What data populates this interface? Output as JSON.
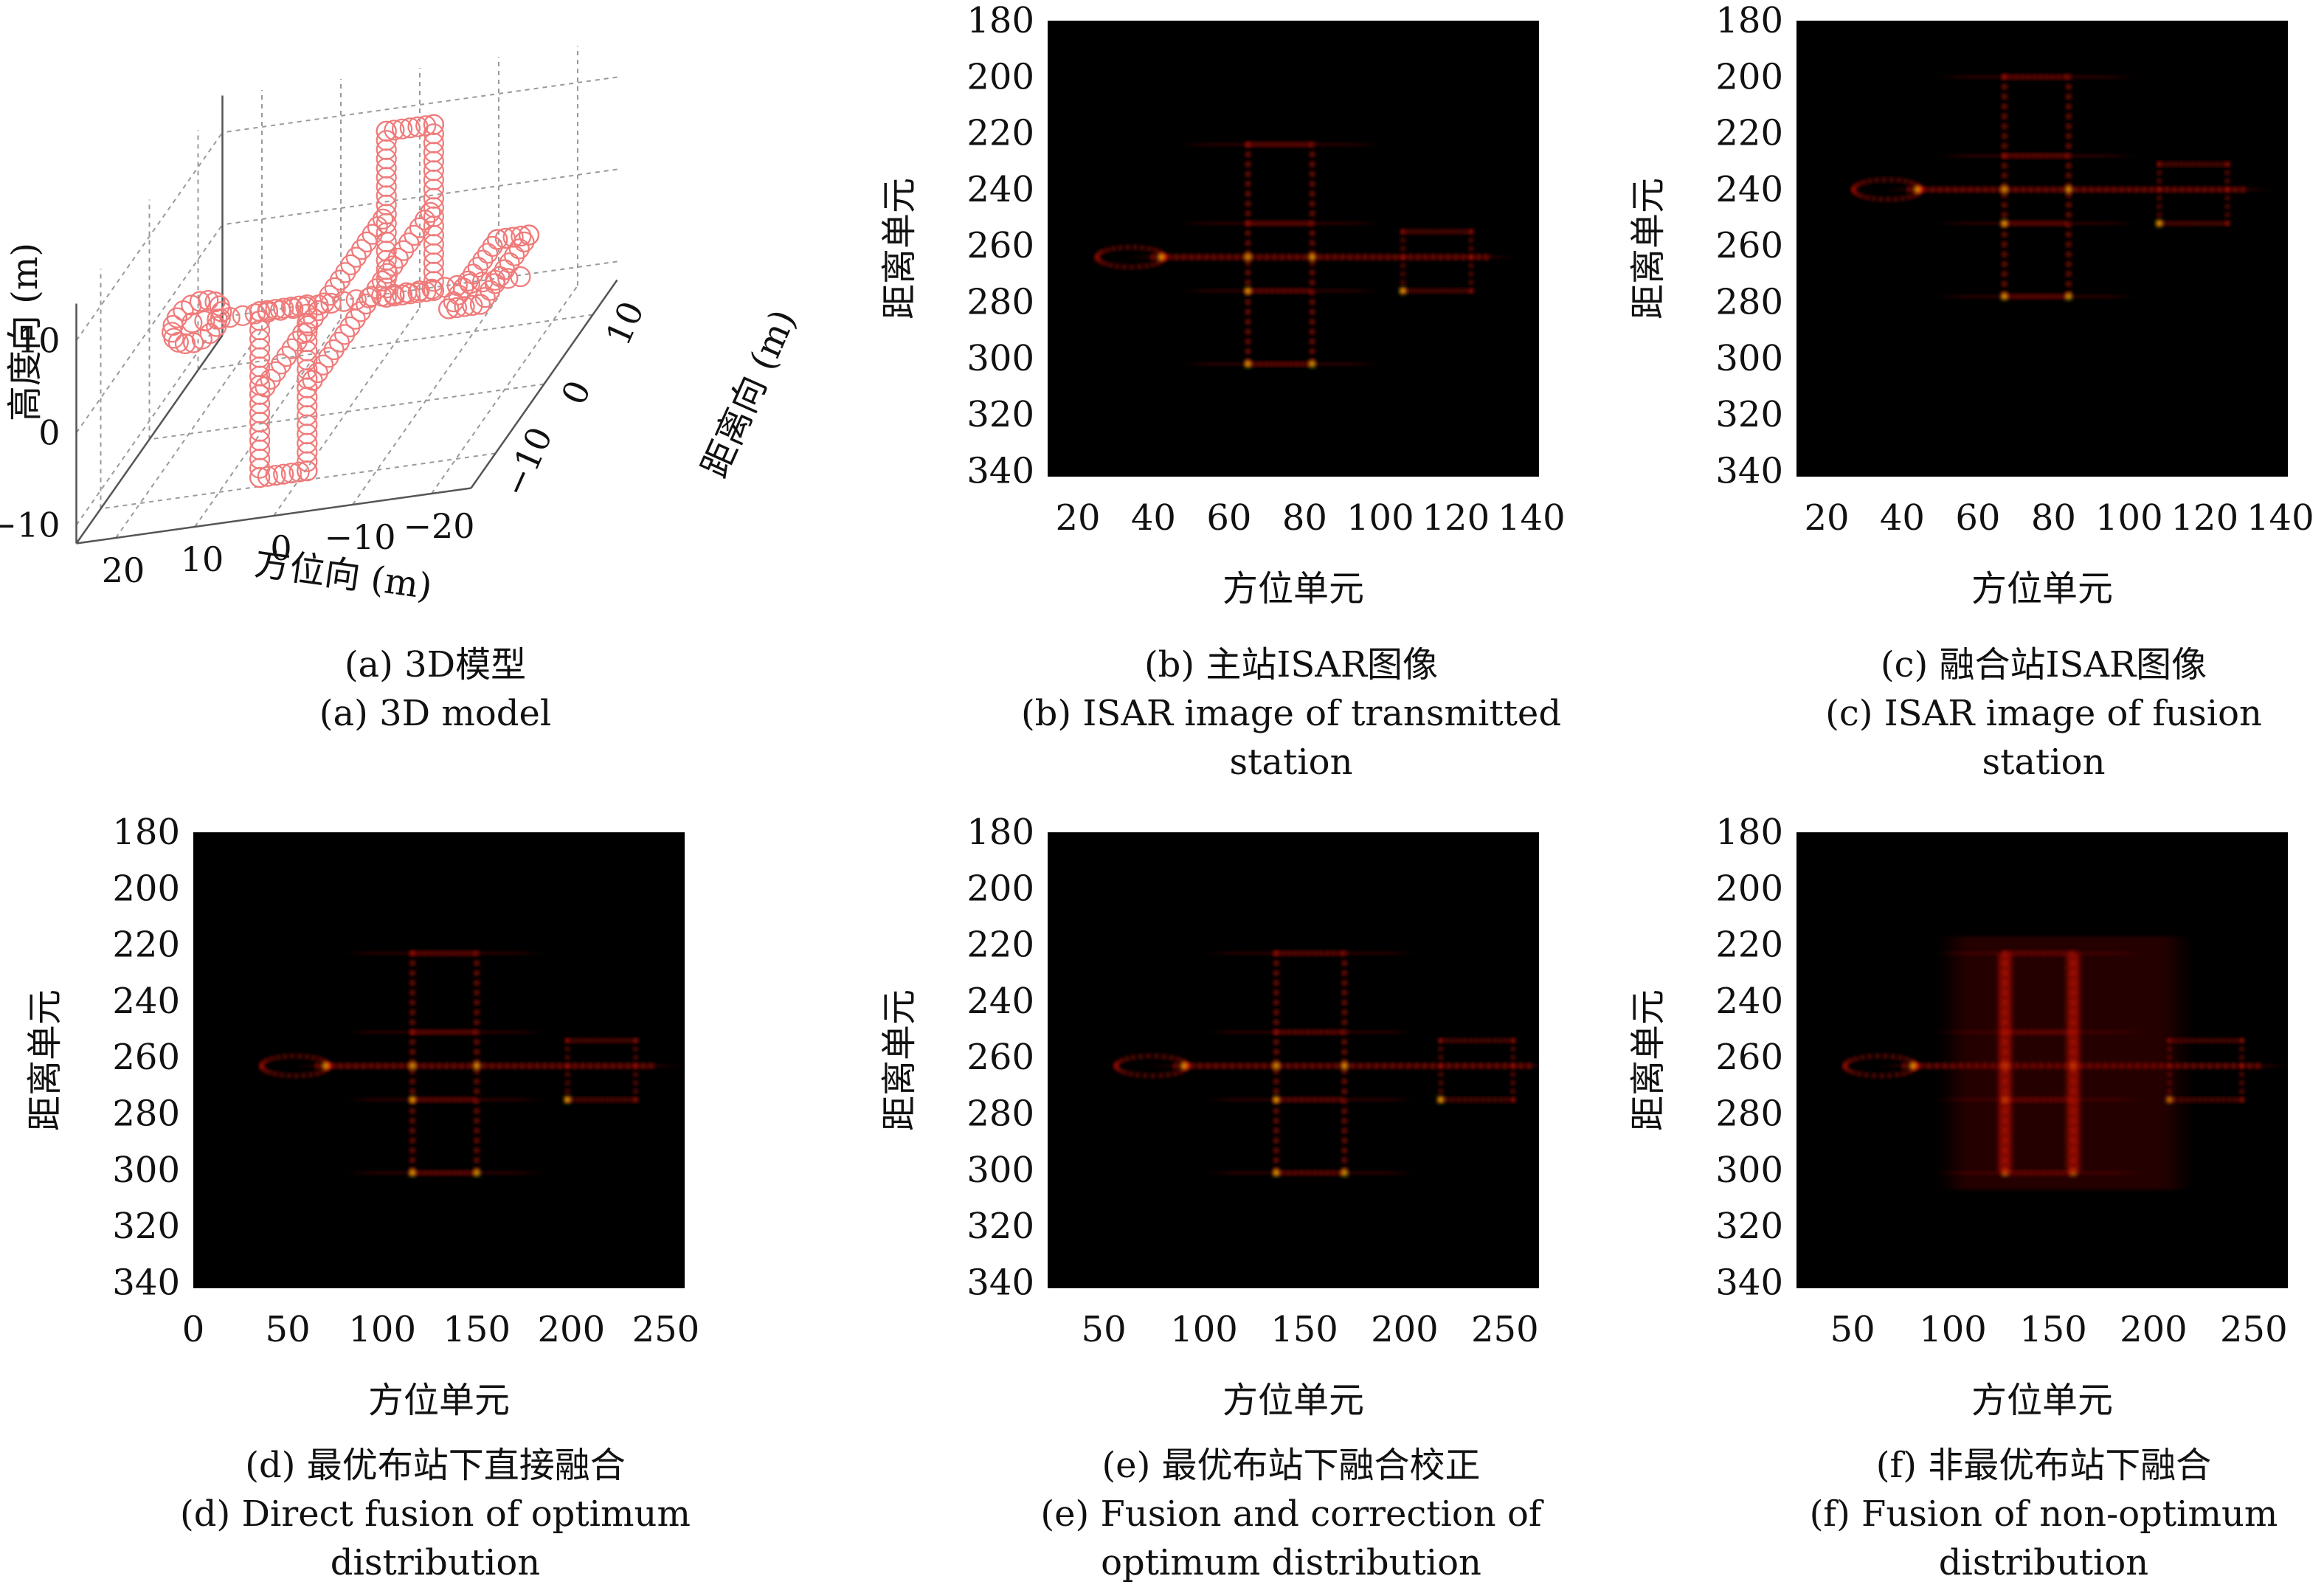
{
  "chart_data": [
    {
      "id": "a",
      "type": "scatter",
      "projection": "3d",
      "xlabel": "方位向 (m)",
      "ylabel": "距离向 (m)",
      "zlabel": "高度向 (m)",
      "x_ticks": [
        "20",
        "10",
        "0",
        "−10",
        "−20"
      ],
      "y_ticks": [
        "10",
        "0",
        "−10"
      ],
      "z_ticks": [
        "10",
        "0",
        "−10"
      ],
      "xlim": [
        -25,
        25
      ],
      "ylim": [
        -15,
        15
      ],
      "zlim": [
        -12,
        14
      ],
      "marker": "circle",
      "marker_color": "#f07a7a",
      "caption_cn": "(a) 3D模型",
      "caption_en": "(a) 3D model"
    },
    {
      "id": "b",
      "type": "heatmap",
      "xlabel": "方位单元",
      "ylabel": "距离单元",
      "x_ticks": [
        "20",
        "40",
        "60",
        "80",
        "100",
        "120",
        "140"
      ],
      "x_tick_values": [
        20,
        40,
        60,
        80,
        100,
        120,
        140
      ],
      "y_ticks": [
        "180",
        "200",
        "220",
        "240",
        "260",
        "280",
        "300",
        "320",
        "340"
      ],
      "xlim": [
        12,
        142
      ],
      "ylim": [
        180,
        342
      ],
      "fuselage_center": [
        72,
        264
      ],
      "colormap": [
        "#000000",
        "#6a0000",
        "#ff1a00",
        "#ffd000",
        "#ffffa0"
      ],
      "caption_cn": "(b) 主站ISAR图像",
      "caption_en": "(b) ISAR image of transmitted\nstation"
    },
    {
      "id": "c",
      "type": "heatmap",
      "xlabel": "方位单元",
      "ylabel": "距离单元",
      "x_ticks": [
        "20",
        "40",
        "60",
        "80",
        "100",
        "120",
        "140"
      ],
      "x_tick_values": [
        20,
        40,
        60,
        80,
        100,
        120,
        140
      ],
      "y_ticks": [
        "180",
        "200",
        "220",
        "240",
        "260",
        "280",
        "300",
        "320",
        "340"
      ],
      "xlim": [
        12,
        142
      ],
      "ylim": [
        180,
        342
      ],
      "fuselage_center": [
        74,
        240
      ],
      "colormap": [
        "#000000",
        "#6a0000",
        "#ff1a00",
        "#ffd000",
        "#ffffa0"
      ],
      "caption_cn": "(c) 融合站ISAR图像",
      "caption_en": "(c) ISAR image of fusion\nstation"
    },
    {
      "id": "d",
      "type": "heatmap",
      "xlabel": "方位单元",
      "ylabel": "距离单元",
      "x_ticks": [
        "0",
        "50",
        "100",
        "150",
        "200",
        "250"
      ],
      "x_tick_values": [
        0,
        50,
        100,
        150,
        200,
        250
      ],
      "y_ticks": [
        "180",
        "200",
        "220",
        "240",
        "260",
        "280",
        "300",
        "320",
        "340"
      ],
      "xlim": [
        0,
        260
      ],
      "ylim": [
        180,
        342
      ],
      "fuselage_center": [
        130,
        263
      ],
      "colormap": [
        "#000000",
        "#6a0000",
        "#ff1a00",
        "#ffd000",
        "#ffffa0"
      ],
      "caption_cn": "(d) 最优布站下直接融合",
      "caption_en": "(d) Direct fusion of optimum\ndistribution"
    },
    {
      "id": "e",
      "type": "heatmap",
      "xlabel": "方位单元",
      "ylabel": "距离单元",
      "x_ticks": [
        "50",
        "100",
        "150",
        "200",
        "250"
      ],
      "x_tick_values": [
        50,
        100,
        150,
        200,
        250
      ],
      "y_ticks": [
        "180",
        "200",
        "220",
        "240",
        "260",
        "280",
        "300",
        "320",
        "340"
      ],
      "xlim": [
        22,
        267
      ],
      "ylim": [
        180,
        342
      ],
      "fuselage_center": [
        150,
        263
      ],
      "colormap": [
        "#000000",
        "#6a0000",
        "#ff1a00",
        "#ffd000",
        "#ffffa0"
      ],
      "caption_cn": "(e) 最优布站下融合校正",
      "caption_en": "(e) Fusion and correction of\noptimum distribution"
    },
    {
      "id": "f",
      "type": "heatmap",
      "xlabel": "方位单元",
      "ylabel": "距离单元",
      "x_ticks": [
        "50",
        "100",
        "150",
        "200",
        "250"
      ],
      "x_tick_values": [
        50,
        100,
        150,
        200,
        250
      ],
      "y_ticks": [
        "180",
        "200",
        "220",
        "240",
        "260",
        "280",
        "300",
        "320",
        "340"
      ],
      "xlim": [
        22,
        267
      ],
      "ylim": [
        180,
        342
      ],
      "fuselage_center": [
        140,
        263
      ],
      "colormap": [
        "#000000",
        "#6a0000",
        "#ff1a00",
        "#ffd000",
        "#ffffa0"
      ],
      "caption_cn": "(f) 非最优布站下融合",
      "caption_en": "(f) Fusion of non-optimum\ndistribution"
    }
  ]
}
